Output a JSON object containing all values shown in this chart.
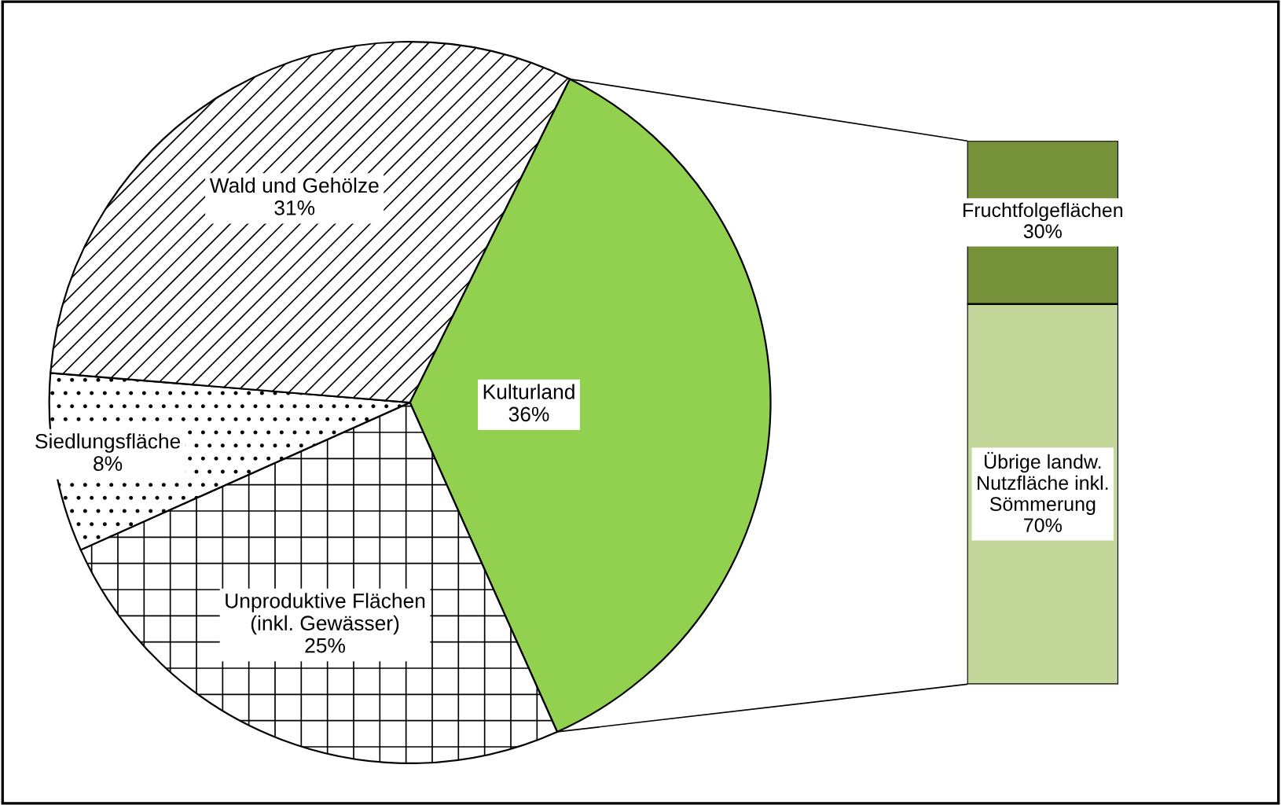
{
  "chart_data": [
    {
      "type": "pie",
      "categories": [
        "Kulturland",
        "Unproduktive Flächen\n(inkl. Gewässer)",
        "Siedlungsfläche",
        "Wald und Gehölze"
      ],
      "values": [
        36,
        25,
        8,
        31
      ],
      "colors": [
        "#92d050",
        "#ffffff",
        "#ffffff",
        "#ffffff"
      ],
      "value_labels": [
        "36%",
        "25%",
        "8%",
        "31%"
      ]
    },
    {
      "type": "bar",
      "stacked": true,
      "categories": [
        null
      ],
      "ylim": [
        0,
        100
      ],
      "tick_labels": false,
      "series": [
        {
          "name": "Übrige landw.\nNutzfläche inkl.\nSömmerung",
          "color": "#c4d79b",
          "values": [
            70
          ],
          "value_labels": [
            "70%"
          ]
        },
        {
          "name": "Fruchtfolgeflächen",
          "color": "#76933c",
          "values": [
            30
          ],
          "value_labels": [
            "30%"
          ]
        }
      ]
    }
  ]
}
